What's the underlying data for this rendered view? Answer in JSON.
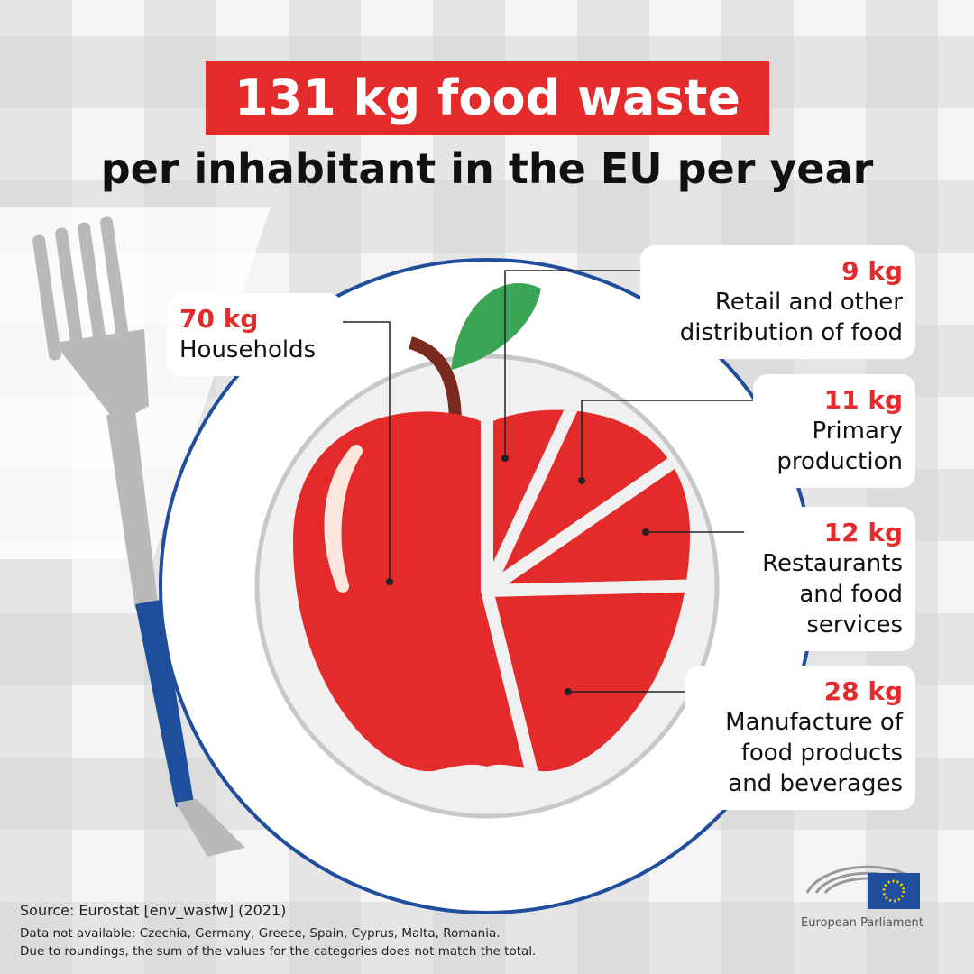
{
  "chart_data": {
    "type": "pie",
    "title": "131 kg food waste",
    "subtitle": "per inhabitant in the EU per year",
    "categories": [
      "Households",
      "Retail and other distribution of food",
      "Primary production",
      "Restaurants and food services",
      "Manufacture of food products and beverages"
    ],
    "values": [
      70,
      9,
      11,
      12,
      28
    ],
    "value_labels": [
      "70 kg",
      "9 kg",
      "11 kg",
      "12 kg",
      "28 kg"
    ],
    "color": "#e32b2b"
  },
  "footer": {
    "source": "Source: Eurostat [env_wasfw] (2021)",
    "notes": [
      "Data not available: Czechia, Germany, Greece, Spain, Cyprus, Malta, Romania.",
      "Due to roundings, the sum of the values for the categories does not match the total."
    ]
  },
  "logo": "European Parliament"
}
